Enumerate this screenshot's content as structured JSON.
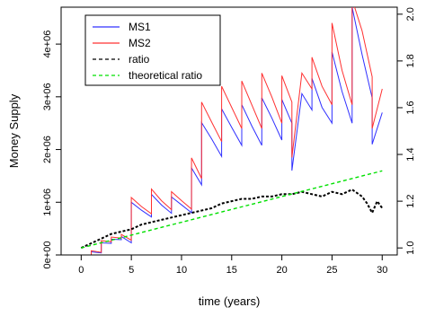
{
  "chart_data": {
    "type": "line",
    "xlabel": "time (years)",
    "ylabel": "Money Supply",
    "xlim": [
      -2,
      31.5
    ],
    "ylim": [
      0,
      4700000
    ],
    "y2lim": [
      0.97,
      2.03
    ],
    "x_ticks": [
      0,
      5,
      10,
      15,
      20,
      25,
      30
    ],
    "x_tick_labels": [
      "0",
      "5",
      "10",
      "15",
      "20",
      "25",
      "30"
    ],
    "y_ticks": [
      0,
      1000000,
      2000000,
      3000000,
      4000000
    ],
    "y_tick_labels": [
      "0e+00",
      "1e+06",
      "2e+06",
      "3e+06",
      "4e+06"
    ],
    "y2_ticks": [
      1.0,
      1.2,
      1.4,
      1.6,
      1.8,
      2.0
    ],
    "y2_tick_labels": [
      "1.0",
      "1.2",
      "1.4",
      "1.6",
      "1.8",
      "2.0"
    ],
    "grid": false,
    "legend_position": "top-left",
    "series": [
      {
        "name": "MS1",
        "color": "#3030ff",
        "style": "solid",
        "axis": "left",
        "x": [
          1,
          1,
          2,
          2,
          3,
          3,
          4,
          4,
          5,
          5,
          6,
          7,
          7,
          8,
          9,
          9,
          10,
          11,
          11,
          12,
          12,
          13,
          14,
          14,
          15,
          16,
          16,
          17,
          18,
          18,
          19,
          20,
          20,
          21,
          21,
          22,
          23,
          23,
          24,
          25,
          25,
          26,
          27,
          27,
          28,
          29,
          29,
          30
        ],
        "y": [
          0,
          60000,
          40000,
          230000,
          220000,
          300000,
          290000,
          350000,
          230000,
          1000000,
          850000,
          720000,
          1150000,
          950000,
          790000,
          1100000,
          950000,
          800000,
          1650000,
          1330000,
          2510000,
          2200000,
          1870000,
          2770000,
          2420000,
          2080000,
          2850000,
          2450000,
          2080000,
          2980000,
          2600000,
          2180000,
          2950000,
          2500000,
          1600000,
          3060000,
          2750000,
          3350000,
          2800000,
          2500000,
          3850000,
          3100000,
          2500000,
          4700000,
          3800000,
          2980000,
          2100000,
          2700000
        ]
      },
      {
        "name": "MS2",
        "color": "#ff3030",
        "style": "solid",
        "axis": "left",
        "x": [
          1,
          1,
          2,
          2,
          3,
          3,
          4,
          4,
          5,
          5,
          6,
          7,
          7,
          8,
          9,
          9,
          10,
          11,
          11,
          12,
          12,
          13,
          14,
          14,
          15,
          16,
          16,
          17,
          18,
          18,
          19,
          20,
          20,
          21,
          21,
          22,
          23,
          23,
          24,
          25,
          25,
          26,
          27,
          27,
          28,
          29,
          29,
          30
        ],
        "y": [
          0,
          80000,
          50000,
          270000,
          250000,
          340000,
          320000,
          390000,
          280000,
          1090000,
          920000,
          780000,
          1250000,
          1030000,
          860000,
          1200000,
          1030000,
          870000,
          1840000,
          1450000,
          2900000,
          2520000,
          2150000,
          3200000,
          2800000,
          2400000,
          3300000,
          2850000,
          2400000,
          3450000,
          3000000,
          2500000,
          3400000,
          2900000,
          1850000,
          3450000,
          3150000,
          3750000,
          3200000,
          2850000,
          4400000,
          3500000,
          2850000,
          4850000,
          4250000,
          3380000,
          2400000,
          3150000
        ]
      },
      {
        "name": "ratio",
        "color": "#000000",
        "style": "dashed",
        "axis": "right",
        "x": [
          0,
          1,
          2,
          3,
          4,
          5,
          6,
          7,
          8,
          9,
          10,
          11,
          12,
          13,
          14,
          15,
          16,
          17,
          18,
          19,
          20,
          21,
          22,
          23,
          24,
          25,
          26,
          27,
          28,
          28.5,
          29,
          29.5,
          30
        ],
        "y": [
          1.0,
          1.02,
          1.04,
          1.06,
          1.07,
          1.08,
          1.1,
          1.11,
          1.12,
          1.13,
          1.14,
          1.15,
          1.16,
          1.17,
          1.19,
          1.2,
          1.21,
          1.21,
          1.22,
          1.22,
          1.23,
          1.23,
          1.24,
          1.23,
          1.22,
          1.24,
          1.23,
          1.25,
          1.22,
          1.19,
          1.15,
          1.2,
          1.17
        ]
      },
      {
        "name": "theoretical ratio",
        "color": "#00e000",
        "style": "dashed",
        "axis": "right",
        "x": [
          0,
          30
        ],
        "y": [
          1.0,
          1.33
        ]
      }
    ]
  }
}
